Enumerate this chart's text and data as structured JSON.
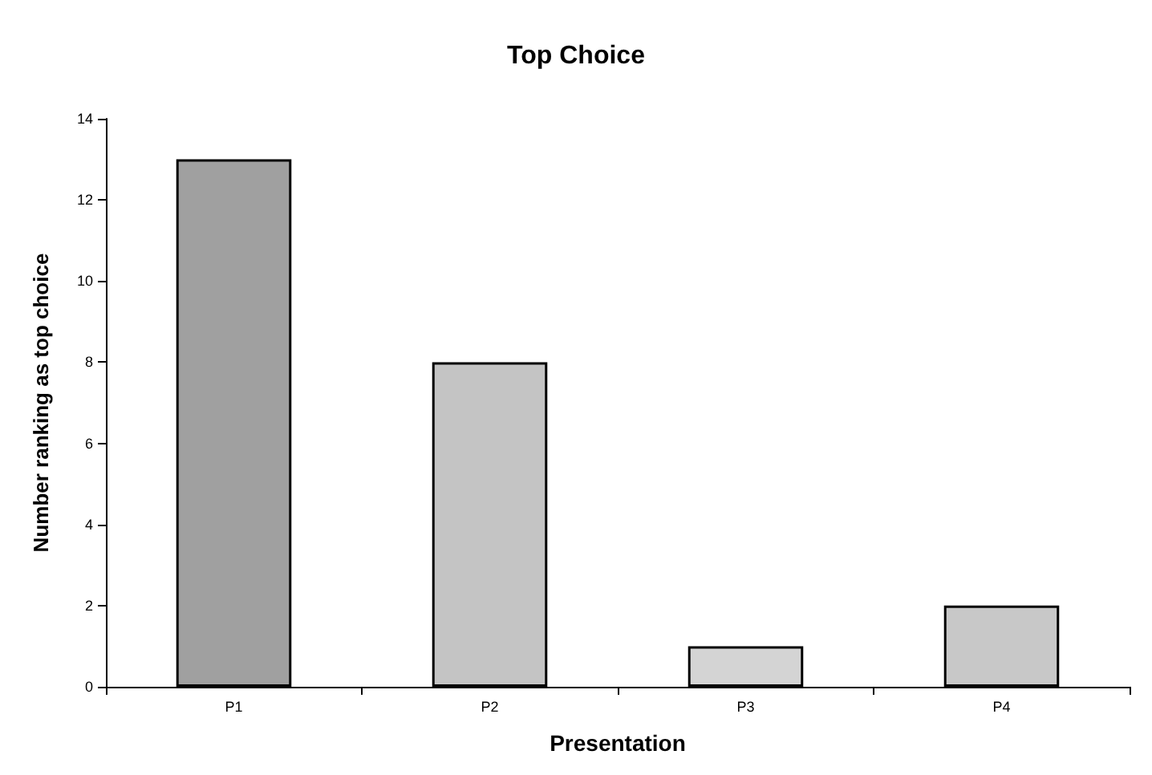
{
  "chart_data": {
    "type": "bar",
    "title": "Top Choice",
    "xlabel": "Presentation",
    "ylabel": "Number ranking as top choice",
    "categories": [
      "P1",
      "P2",
      "P3",
      "P4"
    ],
    "values": [
      13,
      8,
      1,
      2
    ],
    "colors": [
      "#a0a0a0",
      "#c4c4c4",
      "#d4d4d4",
      "#c8c8c8"
    ],
    "ylim": [
      0,
      14
    ],
    "yticks": [
      0,
      2,
      4,
      6,
      8,
      10,
      12,
      14
    ],
    "grid": false
  }
}
